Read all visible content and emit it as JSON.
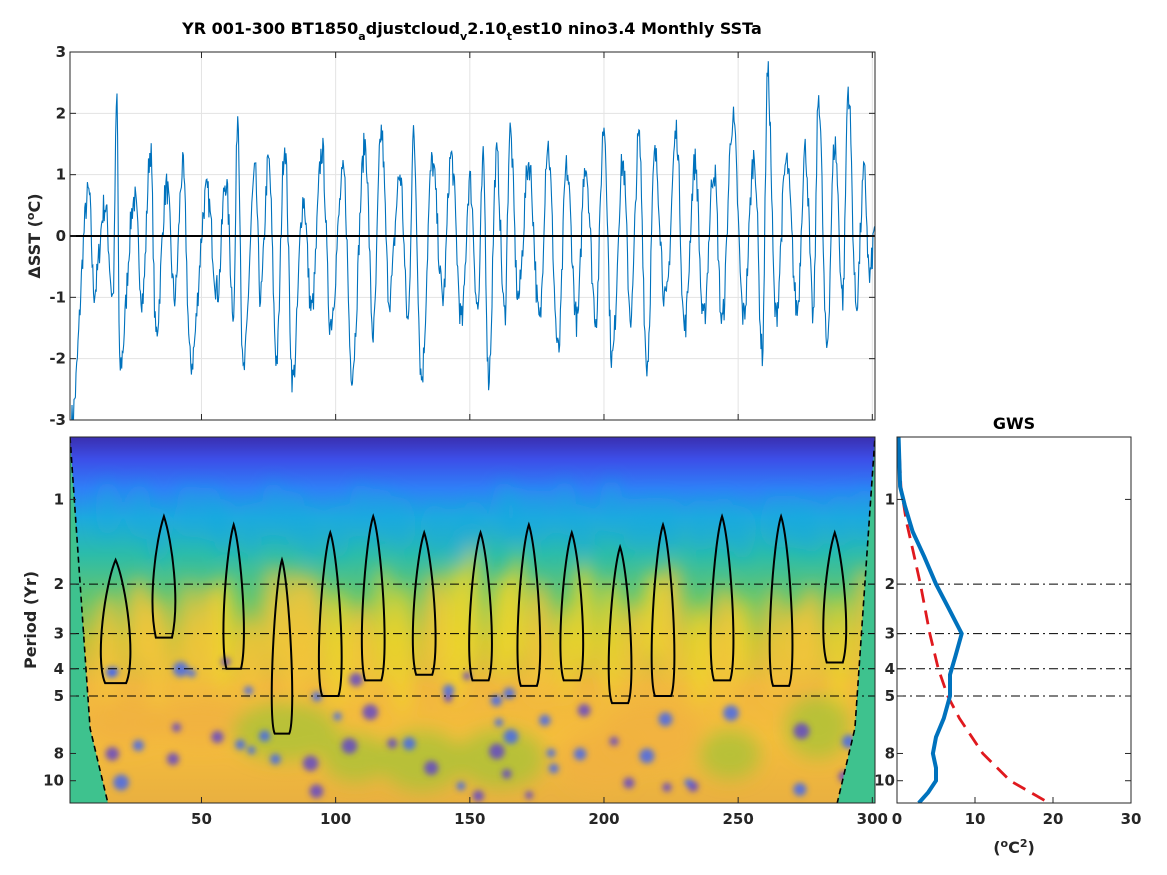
{
  "title": {
    "parts": [
      {
        "text": "YR 001-300 BT1850",
        "sub": false
      },
      {
        "text": "a",
        "sub": true
      },
      {
        "text": "djustcloud",
        "sub": false
      },
      {
        "text": "v",
        "sub": true
      },
      {
        "text": "2.10",
        "sub": false
      },
      {
        "text": "t",
        "sub": true
      },
      {
        "text": "est10 nino3.4 Monthly SSTa",
        "sub": false
      }
    ]
  },
  "chart_data": [
    {
      "type": "line",
      "ylabel": "ΔSST (°C)",
      "ylabel_parts": {
        "pre": "ΔSST (",
        "sup": "o",
        "post": "C)"
      },
      "xlim": [
        1,
        301
      ],
      "ylim": [
        -3,
        3
      ],
      "yticks": [
        -3,
        -2,
        -1,
        0,
        1,
        2,
        3
      ],
      "xticks": [
        50,
        100,
        150,
        200,
        250,
        300
      ],
      "grid": true,
      "zero_line": true,
      "series_color": "#0072BD",
      "peaks": [
        {
          "x": 1.5,
          "y": -3.0
        },
        {
          "x": 8,
          "y": 0.7
        },
        {
          "x": 10,
          "y": -0.9
        },
        {
          "x": 14,
          "y": 0.5
        },
        {
          "x": 17,
          "y": -1.0
        },
        {
          "x": 18.5,
          "y": 2.25
        },
        {
          "x": 19.5,
          "y": -2.15
        },
        {
          "x": 25,
          "y": 0.6
        },
        {
          "x": 28,
          "y": -1.0
        },
        {
          "x": 31,
          "y": 1.4
        },
        {
          "x": 33,
          "y": -1.6
        },
        {
          "x": 37,
          "y": 0.8
        },
        {
          "x": 40,
          "y": -1.0
        },
        {
          "x": 43,
          "y": 1.1
        },
        {
          "x": 46,
          "y": -2.1
        },
        {
          "x": 52,
          "y": 0.7
        },
        {
          "x": 56,
          "y": -0.9
        },
        {
          "x": 59,
          "y": 0.9
        },
        {
          "x": 62,
          "y": -1.2
        },
        {
          "x": 63.5,
          "y": 2.0
        },
        {
          "x": 65.5,
          "y": -2.25
        },
        {
          "x": 70,
          "y": 1.0
        },
        {
          "x": 72,
          "y": -1.0
        },
        {
          "x": 75,
          "y": 1.2
        },
        {
          "x": 78,
          "y": -2.0
        },
        {
          "x": 81,
          "y": 1.5
        },
        {
          "x": 84,
          "y": -2.35
        },
        {
          "x": 88,
          "y": 0.6
        },
        {
          "x": 91,
          "y": -1.2
        },
        {
          "x": 95,
          "y": 1.4
        },
        {
          "x": 98,
          "y": -1.4
        },
        {
          "x": 103,
          "y": 1.0
        },
        {
          "x": 106,
          "y": -2.2
        },
        {
          "x": 111,
          "y": 1.5
        },
        {
          "x": 114,
          "y": -1.6
        },
        {
          "x": 117,
          "y": 1.7
        },
        {
          "x": 120,
          "y": -1.0
        },
        {
          "x": 124,
          "y": 1.0
        },
        {
          "x": 127,
          "y": -1.4
        },
        {
          "x": 129,
          "y": 1.6
        },
        {
          "x": 132,
          "y": -2.3
        },
        {
          "x": 136,
          "y": 1.2
        },
        {
          "x": 140,
          "y": -1.0
        },
        {
          "x": 143,
          "y": 1.3
        },
        {
          "x": 147,
          "y": -1.4
        },
        {
          "x": 150,
          "y": 0.9
        },
        {
          "x": 153,
          "y": -1.2
        },
        {
          "x": 155,
          "y": 1.2
        },
        {
          "x": 157,
          "y": -2.3
        },
        {
          "x": 160,
          "y": 1.3
        },
        {
          "x": 163,
          "y": -1.3
        },
        {
          "x": 165,
          "y": 1.7
        },
        {
          "x": 168,
          "y": -1.0
        },
        {
          "x": 172,
          "y": 1.2
        },
        {
          "x": 176,
          "y": -1.4
        },
        {
          "x": 179,
          "y": 1.5
        },
        {
          "x": 183,
          "y": -1.9
        },
        {
          "x": 186,
          "y": 1.1
        },
        {
          "x": 190,
          "y": -1.4
        },
        {
          "x": 193,
          "y": 1.2
        },
        {
          "x": 197,
          "y": -1.3
        },
        {
          "x": 200,
          "y": 1.8
        },
        {
          "x": 203,
          "y": -2.0
        },
        {
          "x": 207,
          "y": 1.2
        },
        {
          "x": 210,
          "y": -1.3
        },
        {
          "x": 213,
          "y": 1.6
        },
        {
          "x": 216,
          "y": -2.1
        },
        {
          "x": 219,
          "y": 1.3
        },
        {
          "x": 223,
          "y": -1.1
        },
        {
          "x": 227,
          "y": 1.7
        },
        {
          "x": 230,
          "y": -1.5
        },
        {
          "x": 234,
          "y": 1.2
        },
        {
          "x": 237,
          "y": -1.4
        },
        {
          "x": 241,
          "y": 1.1
        },
        {
          "x": 244,
          "y": -1.4
        },
        {
          "x": 248,
          "y": 1.9
        },
        {
          "x": 252,
          "y": -1.3
        },
        {
          "x": 256,
          "y": 1.3
        },
        {
          "x": 259,
          "y": -1.9
        },
        {
          "x": 261,
          "y": 2.65
        },
        {
          "x": 264,
          "y": -1.3
        },
        {
          "x": 268,
          "y": 1.2
        },
        {
          "x": 272,
          "y": -1.2
        },
        {
          "x": 275,
          "y": 1.4
        },
        {
          "x": 278,
          "y": -1.3
        },
        {
          "x": 280,
          "y": 2.3
        },
        {
          "x": 283,
          "y": -1.8
        },
        {
          "x": 286,
          "y": 1.5
        },
        {
          "x": 289,
          "y": -1.0
        },
        {
          "x": 291,
          "y": 2.4
        },
        {
          "x": 294,
          "y": -1.1
        },
        {
          "x": 297,
          "y": 1.0
        },
        {
          "x": 299,
          "y": -0.7
        },
        {
          "x": 301,
          "y": 0.1
        }
      ]
    },
    {
      "type": "heatmap",
      "ylabel": "Period (Yr)",
      "xlim": [
        1,
        301
      ],
      "y_scale": "log",
      "ylim": [
        0.6,
        12
      ],
      "yticks": [
        1,
        2,
        3,
        4,
        5,
        8,
        10
      ],
      "xticks": [
        50,
        100,
        150,
        200,
        250,
        300
      ],
      "reference_periods": [
        2,
        3,
        4,
        5
      ],
      "colormap": [
        "#3e26a8",
        "#3a61f9",
        "#1ca9df",
        "#35c48b",
        "#a6c335",
        "#f6b73b",
        "#f5e21c"
      ],
      "cone_of_influence": true
    },
    {
      "type": "line",
      "title": "GWS",
      "xlabel_parts": {
        "pre": "(",
        "sup1": "o",
        "mid": "C",
        "sup2": "2",
        "post": ")"
      },
      "xlim": [
        0,
        30
      ],
      "xticks": [
        0,
        10,
        20,
        30
      ],
      "y_scale": "log",
      "ylim": [
        0.6,
        12
      ],
      "yticks": [
        1,
        2,
        3,
        4,
        5,
        8,
        10
      ],
      "reference_periods": [
        2,
        3,
        4,
        5
      ],
      "series": [
        {
          "style": "solid",
          "color": "#0072BD",
          "points": [
            [
              0.2,
              0.6
            ],
            [
              0.4,
              0.9
            ],
            [
              1.0,
              1.05
            ],
            [
              2.0,
              1.3
            ],
            [
              3.5,
              1.6
            ],
            [
              5.0,
              2.0
            ],
            [
              6.5,
              2.4
            ],
            [
              8.3,
              3.0
            ],
            [
              7.5,
              3.6
            ],
            [
              6.8,
              4.2
            ],
            [
              6.8,
              5.0
            ],
            [
              6.0,
              6.0
            ],
            [
              5.0,
              7.0
            ],
            [
              4.6,
              8.0
            ],
            [
              5.0,
              9.0
            ],
            [
              5.0,
              10.0
            ],
            [
              4.0,
              11.0
            ],
            [
              2.8,
              12.0
            ]
          ]
        },
        {
          "style": "dashed",
          "color": "#E0191E",
          "points": [
            [
              0.2,
              0.6
            ],
            [
              0.5,
              0.9
            ],
            [
              1.2,
              1.2
            ],
            [
              2.0,
              1.5
            ],
            [
              3.0,
              2.0
            ],
            [
              4.2,
              3.0
            ],
            [
              5.3,
              4.0
            ],
            [
              6.5,
              5.0
            ],
            [
              8.0,
              6.0
            ],
            [
              11.0,
              8.0
            ],
            [
              14.5,
              10.0
            ],
            [
              19.5,
              12.0
            ]
          ]
        }
      ]
    }
  ]
}
